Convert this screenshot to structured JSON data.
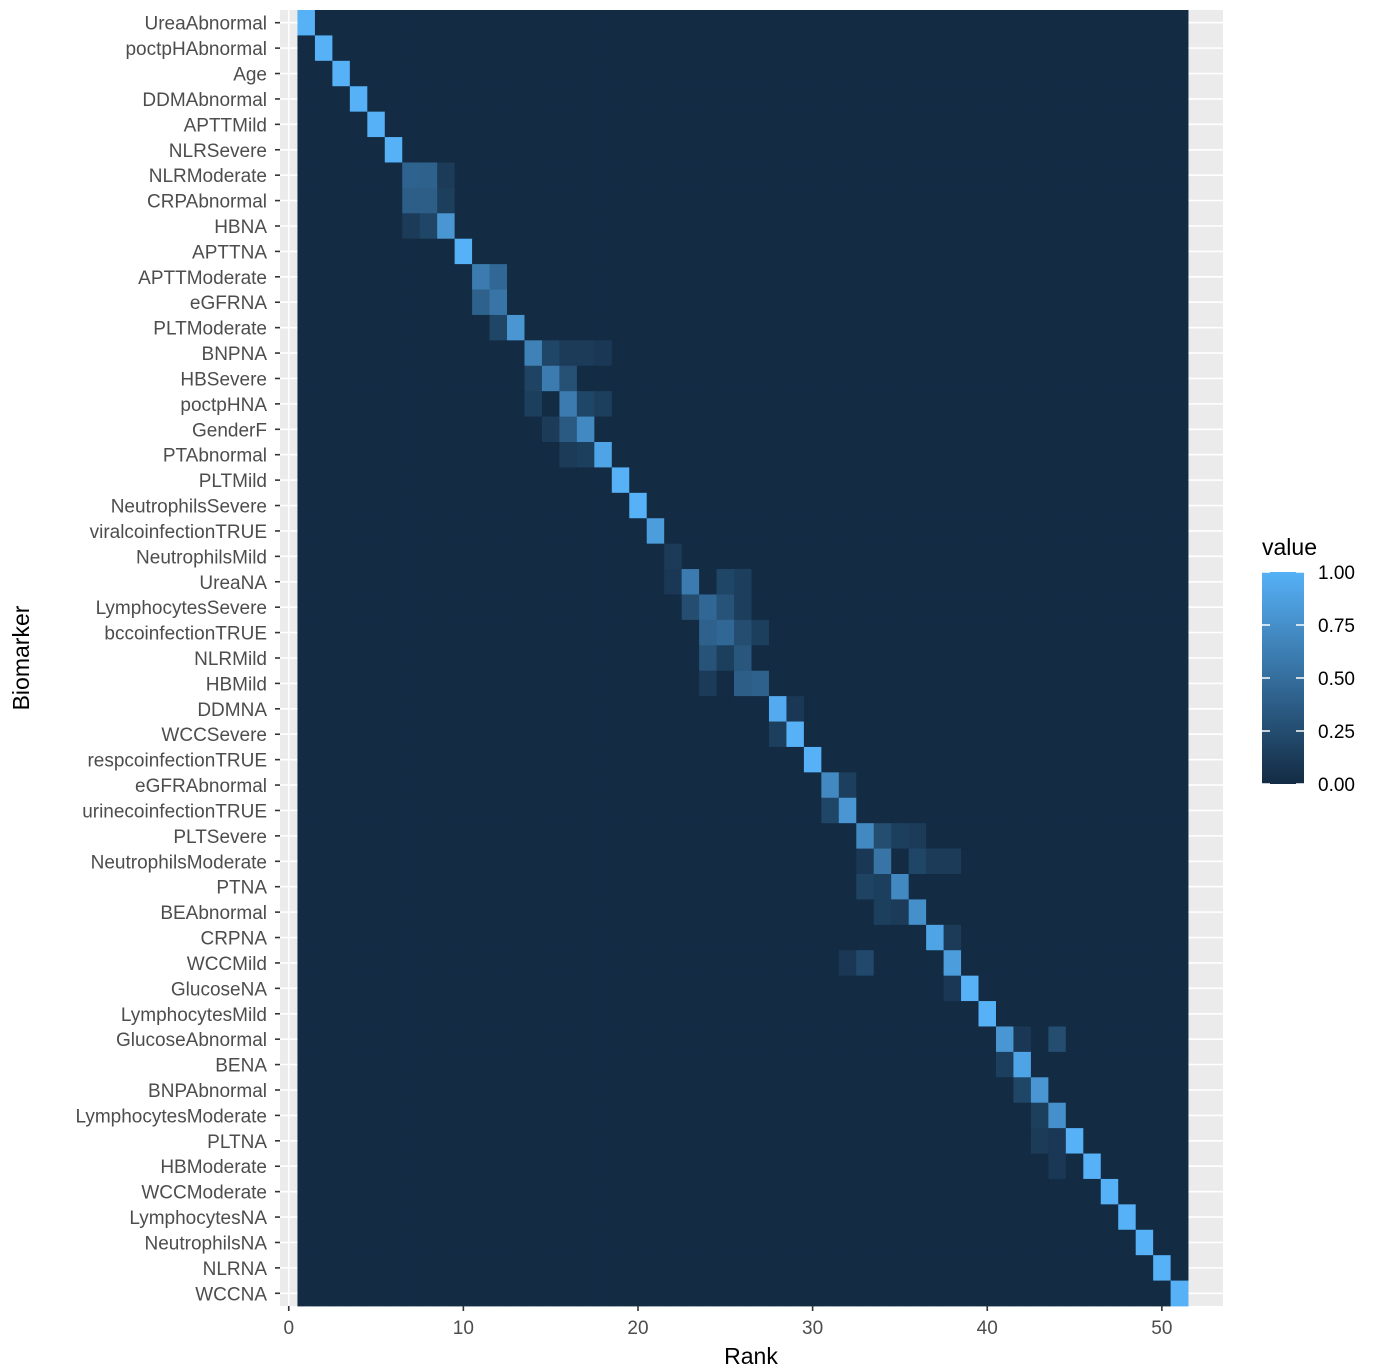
{
  "chart_data": {
    "type": "heatmap",
    "title": "",
    "xlabel": "Rank",
    "ylabel": "Biomarker",
    "xlim": [
      -0.5,
      53.5
    ],
    "x_ticks": [
      0,
      10,
      20,
      30,
      40,
      50
    ],
    "x_values": [
      1,
      2,
      3,
      4,
      5,
      6,
      7,
      8,
      9,
      10,
      11,
      12,
      13,
      14,
      15,
      16,
      17,
      18,
      19,
      20,
      21,
      22,
      23,
      24,
      25,
      26,
      27,
      28,
      29,
      30,
      31,
      32,
      33,
      34,
      35,
      36,
      37,
      38,
      39,
      40,
      41,
      42,
      43,
      44,
      45,
      46,
      47,
      48,
      49,
      50,
      51
    ],
    "categories": [
      "UreaAbnormal",
      "poctpHAbnormal",
      "Age",
      "DDMAbnormal",
      "APTTMild",
      "NLRSevere",
      "NLRModerate",
      "CRPAbnormal",
      "HBNA",
      "APTTNA",
      "APTTModerate",
      "eGFRNA",
      "PLTModerate",
      "BNPNA",
      "HBSevere",
      "poctpHNA",
      "GenderF",
      "PTAbnormal",
      "PLTMild",
      "NeutrophilsSevere",
      "viralcoinfectionTRUE",
      "NeutrophilsMild",
      "UreaNA",
      "LymphocytesSevere",
      "bccoinfectionTRUE",
      "NLRMild",
      "HBMild",
      "DDMNA",
      "WCCSevere",
      "respcoinfectionTRUE",
      "eGFRAbnormal",
      "urinecoinfectionTRUE",
      "PLTSevere",
      "NeutrophilsModerate",
      "PTNA",
      "BEAbnormal",
      "CRPNA",
      "WCCMild",
      "GlucoseNA",
      "LymphocytesMild",
      "GlucoseAbnormal",
      "BENA",
      "BNPAbnormal",
      "LymphocytesModerate",
      "PLTNA",
      "HBModerate",
      "WCCModerate",
      "LymphocytesNA",
      "NeutrophilsNA",
      "NLRNA",
      "WCCNA"
    ],
    "value_range": [
      0,
      1
    ],
    "legend": {
      "title": "value",
      "position": "right",
      "breaks": [
        "1.00",
        "0.75",
        "0.50",
        "0.25",
        "0.00"
      ],
      "break_values": [
        1.0,
        0.75,
        0.5,
        0.25,
        0.0
      ]
    },
    "colors": {
      "low": "#132B43",
      "high": "#56B1F7",
      "panel_background": "#EBEBEB",
      "grid": "#FFFFFF",
      "tick_mark": "#333333"
    },
    "diagonal_values": [
      1.0,
      1.0,
      1.0,
      1.0,
      1.0,
      1.0,
      0.42,
      0.38,
      0.8,
      1.0,
      0.6,
      0.55,
      0.8,
      0.65,
      0.6,
      0.6,
      0.7,
      0.9,
      1.0,
      1.0,
      0.85,
      0.9,
      0.6,
      0.45,
      0.45,
      0.35,
      0.4,
      0.95,
      1.0,
      1.0,
      0.7,
      0.8,
      0.7,
      0.55,
      0.7,
      0.75,
      0.9,
      0.85,
      1.0,
      1.0,
      0.8,
      0.9,
      0.8,
      0.75,
      1.0,
      1.0,
      1.0,
      1.0,
      1.0,
      1.0,
      1.0
    ],
    "off_diagonal": [
      {
        "row": "NLRModerate",
        "rank": 8,
        "value": 0.4
      },
      {
        "row": "CRPAbnormal",
        "rank": 7,
        "value": 0.38
      },
      {
        "row": "NLRModerate",
        "rank": 9,
        "value": 0.12
      },
      {
        "row": "CRPAbnormal",
        "rank": 9,
        "value": 0.15
      },
      {
        "row": "HBNA",
        "rank": 7,
        "value": 0.12
      },
      {
        "row": "HBNA",
        "rank": 8,
        "value": 0.2
      },
      {
        "row": "APTTModerate",
        "rank": 12,
        "value": 0.45
      },
      {
        "row": "eGFRNA",
        "rank": 11,
        "value": 0.4
      },
      {
        "row": "PLTModerate",
        "rank": 12,
        "value": 0.2
      },
      {
        "row": "BNPNA",
        "rank": 15,
        "value": 0.2
      },
      {
        "row": "BNPNA",
        "rank": 16,
        "value": 0.12
      },
      {
        "row": "BNPNA",
        "rank": 17,
        "value": 0.12
      },
      {
        "row": "BNPNA",
        "rank": 18,
        "value": 0.1
      },
      {
        "row": "HBSevere",
        "rank": 14,
        "value": 0.18
      },
      {
        "row": "HBSevere",
        "rank": 16,
        "value": 0.28
      },
      {
        "row": "poctpHNA",
        "rank": 14,
        "value": 0.15
      },
      {
        "row": "poctpHNA",
        "rank": 17,
        "value": 0.2
      },
      {
        "row": "poctpHNA",
        "rank": 18,
        "value": 0.15
      },
      {
        "row": "GenderF",
        "rank": 16,
        "value": 0.35
      },
      {
        "row": "GenderF",
        "rank": 15,
        "value": 0.12
      },
      {
        "row": "PTAbnormal",
        "rank": 16,
        "value": 0.12
      },
      {
        "row": "PTAbnormal",
        "rank": 17,
        "value": 0.15
      },
      {
        "row": "NeutrophilsMild",
        "rank": 22,
        "value": 0.12
      },
      {
        "row": "UreaNA",
        "rank": 25,
        "value": 0.2
      },
      {
        "row": "UreaNA",
        "rank": 26,
        "value": 0.15
      },
      {
        "row": "UreaNA",
        "rank": 22,
        "value": 0.1
      },
      {
        "row": "LymphocytesSevere",
        "rank": 23,
        "value": 0.25
      },
      {
        "row": "LymphocytesSevere",
        "rank": 25,
        "value": 0.3
      },
      {
        "row": "LymphocytesSevere",
        "rank": 26,
        "value": 0.15
      },
      {
        "row": "bccoinfectionTRUE",
        "rank": 24,
        "value": 0.4
      },
      {
        "row": "bccoinfectionTRUE",
        "rank": 26,
        "value": 0.25
      },
      {
        "row": "bccoinfectionTRUE",
        "rank": 27,
        "value": 0.15
      },
      {
        "row": "NLRMild",
        "rank": 24,
        "value": 0.3
      },
      {
        "row": "NLRMild",
        "rank": 26,
        "value": 0.32
      },
      {
        "row": "NLRMild",
        "rank": 25,
        "value": 0.15
      },
      {
        "row": "HBMild",
        "rank": 26,
        "value": 0.38
      },
      {
        "row": "HBMild",
        "rank": 24,
        "value": 0.12
      },
      {
        "row": "DDMNA",
        "rank": 29,
        "value": 0.1
      },
      {
        "row": "WCCSevere",
        "rank": 28,
        "value": 0.15
      },
      {
        "row": "eGFRAbnormal",
        "rank": 32,
        "value": 0.15
      },
      {
        "row": "urinecoinfectionTRUE",
        "rank": 31,
        "value": 0.2
      },
      {
        "row": "PLTSevere",
        "rank": 34,
        "value": 0.25
      },
      {
        "row": "PLTSevere",
        "rank": 35,
        "value": 0.15
      },
      {
        "row": "PLTSevere",
        "rank": 36,
        "value": 0.12
      },
      {
        "row": "NeutrophilsModerate",
        "rank": 36,
        "value": 0.2
      },
      {
        "row": "NeutrophilsModerate",
        "rank": 37,
        "value": 0.12
      },
      {
        "row": "NeutrophilsModerate",
        "rank": 38,
        "value": 0.12
      },
      {
        "row": "NeutrophilsModerate",
        "rank": 33,
        "value": 0.1
      },
      {
        "row": "PTNA",
        "rank": 33,
        "value": 0.18
      },
      {
        "row": "PTNA",
        "rank": 34,
        "value": 0.15
      },
      {
        "row": "BEAbnormal",
        "rank": 34,
        "value": 0.15
      },
      {
        "row": "BEAbnormal",
        "rank": 35,
        "value": 0.12
      },
      {
        "row": "CRPNA",
        "rank": 38,
        "value": 0.12
      },
      {
        "row": "WCCMild",
        "rank": 33,
        "value": 0.22
      },
      {
        "row": "WCCMild",
        "rank": 32,
        "value": 0.1
      },
      {
        "row": "GlucoseNA",
        "rank": 38,
        "value": 0.1
      },
      {
        "row": "GlucoseAbnormal",
        "rank": 44,
        "value": 0.25
      },
      {
        "row": "GlucoseAbnormal",
        "rank": 42,
        "value": 0.1
      },
      {
        "row": "BENA",
        "rank": 41,
        "value": 0.15
      },
      {
        "row": "BNPAbnormal",
        "rank": 42,
        "value": 0.2
      },
      {
        "row": "LymphocytesModerate",
        "rank": 43,
        "value": 0.15
      },
      {
        "row": "PLTNA",
        "rank": 43,
        "value": 0.12
      },
      {
        "row": "PLTNA",
        "rank": 44,
        "value": 0.1
      },
      {
        "row": "HBModerate",
        "rank": 44,
        "value": 0.1
      }
    ]
  }
}
